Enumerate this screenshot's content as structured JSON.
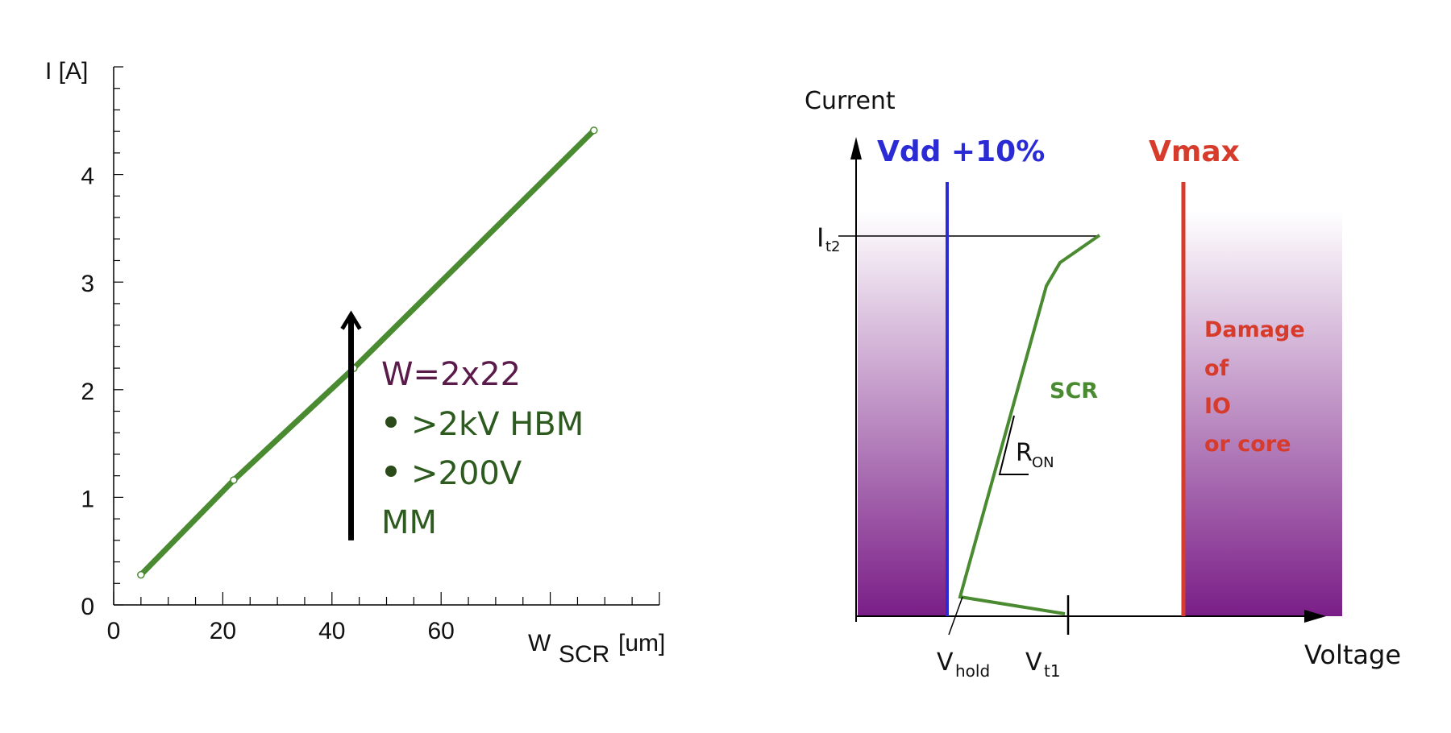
{
  "chart_data": [
    {
      "type": "line",
      "ylabel": "I [A]",
      "xlabel_main": "W",
      "xlabel_sub": "SCR",
      "xlabel_unit": "[um]",
      "xlim": [
        0,
        100
      ],
      "ylim": [
        0,
        5
      ],
      "x_ticks": [
        0,
        20,
        40,
        60
      ],
      "y_ticks": [
        0,
        1,
        2,
        3,
        4
      ],
      "grid": false,
      "x": [
        5,
        22,
        44,
        88
      ],
      "y": [
        0.28,
        1.16,
        2.2,
        4.41
      ],
      "color": "#4a8a30",
      "annotations": {
        "title": "W=2x22",
        "bullets": [
          ">2kV HBM",
          ">200V"
        ],
        "continuation": "MM",
        "arrow_x": 43.5,
        "arrow_from_y": 0.6,
        "arrow_to_y": 2.7
      }
    },
    {
      "type": "line",
      "ylabel": "Current",
      "xlabel": "Voltage",
      "vdd_label": "Vdd +10%",
      "vmax_label": "Vmax",
      "it2_label": {
        "main": "I",
        "sub": "t2"
      },
      "curve_label": "SCR",
      "ron_label": {
        "main": "R",
        "sub": "ON"
      },
      "vhold_label": {
        "main": "V",
        "sub": "hold"
      },
      "vt1_label": {
        "main": "V",
        "sub": "t1"
      },
      "damage_label": [
        "Damage",
        "of",
        "IO",
        "or core"
      ],
      "colors": {
        "vdd": "#2b2bd6",
        "vmax": "#d63b2b",
        "curve": "#4a8a30",
        "region": "#7a1e87"
      }
    }
  ]
}
